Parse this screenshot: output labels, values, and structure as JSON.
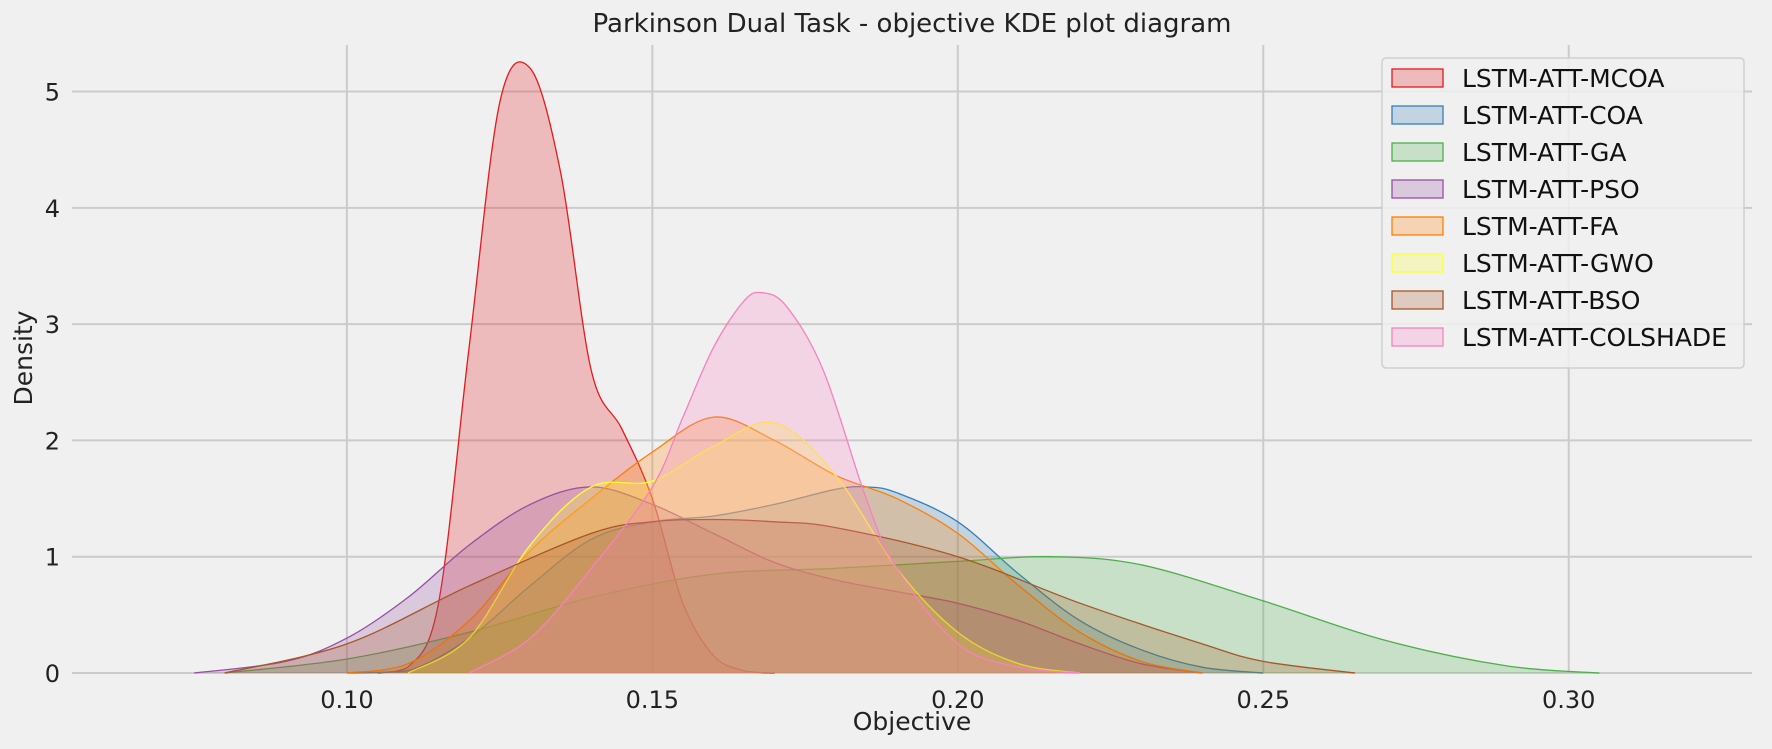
{
  "chart_data": {
    "type": "area",
    "title": "Parkinson Dual Task -  objective KDE plot diagram",
    "xlabel": "Objective",
    "ylabel": "Density",
    "xlim": [
      0.055,
      0.33
    ],
    "ylim": [
      0,
      5.4
    ],
    "xticks": [
      0.1,
      0.15,
      0.2,
      0.25,
      0.3
    ],
    "xtick_labels": [
      "0.10",
      "0.15",
      "0.20",
      "0.25",
      "0.30"
    ],
    "yticks": [
      0,
      1,
      2,
      3,
      4,
      5
    ],
    "ytick_labels": [
      "0",
      "1",
      "2",
      "3",
      "4",
      "5"
    ],
    "grid": true,
    "legend_position": "top-right",
    "series": [
      {
        "name": "LSTM-ATT-MCOA",
        "color": "#e41a1c",
        "x": [
          0.105,
          0.11,
          0.115,
          0.12,
          0.125,
          0.13,
          0.135,
          0.14,
          0.145,
          0.15,
          0.155,
          0.16,
          0.165,
          0.17
        ],
        "y": [
          0.0,
          0.05,
          0.6,
          2.8,
          4.9,
          5.2,
          4.3,
          2.6,
          2.1,
          1.5,
          0.6,
          0.15,
          0.02,
          0.0
        ]
      },
      {
        "name": "LSTM-ATT-COA",
        "color": "#377eb8",
        "x": [
          0.1,
          0.11,
          0.12,
          0.13,
          0.14,
          0.15,
          0.16,
          0.17,
          0.18,
          0.185,
          0.19,
          0.2,
          0.21,
          0.22,
          0.23,
          0.24,
          0.25
        ],
        "y": [
          0.0,
          0.02,
          0.3,
          0.75,
          1.15,
          1.3,
          1.35,
          1.45,
          1.58,
          1.6,
          1.55,
          1.3,
          0.85,
          0.45,
          0.2,
          0.05,
          0.0
        ]
      },
      {
        "name": "LSTM-ATT-GA",
        "color": "#4daf4a",
        "x": [
          0.08,
          0.1,
          0.12,
          0.14,
          0.16,
          0.18,
          0.2,
          0.215,
          0.23,
          0.25,
          0.27,
          0.29,
          0.305
        ],
        "y": [
          0.0,
          0.12,
          0.35,
          0.65,
          0.85,
          0.9,
          0.96,
          1.0,
          0.93,
          0.62,
          0.28,
          0.06,
          0.0
        ]
      },
      {
        "name": "LSTM-ATT-PSO",
        "color": "#984ea3",
        "x": [
          0.075,
          0.09,
          0.1,
          0.11,
          0.12,
          0.13,
          0.14,
          0.15,
          0.16,
          0.17,
          0.18,
          0.19,
          0.2,
          0.21,
          0.22,
          0.23,
          0.24
        ],
        "y": [
          0.0,
          0.1,
          0.3,
          0.65,
          1.1,
          1.45,
          1.6,
          1.45,
          1.2,
          0.95,
          0.8,
          0.7,
          0.6,
          0.45,
          0.25,
          0.08,
          0.0
        ]
      },
      {
        "name": "LSTM-ATT-FA",
        "color": "#ff7f00",
        "x": [
          0.1,
          0.11,
          0.12,
          0.13,
          0.14,
          0.15,
          0.16,
          0.17,
          0.18,
          0.19,
          0.2,
          0.21,
          0.22,
          0.23,
          0.24
        ],
        "y": [
          0.0,
          0.08,
          0.45,
          1.05,
          1.5,
          1.9,
          2.2,
          2.0,
          1.7,
          1.5,
          1.2,
          0.75,
          0.35,
          0.1,
          0.0
        ]
      },
      {
        "name": "LSTM-ATT-GWO",
        "color": "#ffff33",
        "x": [
          0.11,
          0.12,
          0.13,
          0.14,
          0.15,
          0.16,
          0.17,
          0.18,
          0.19,
          0.2,
          0.21,
          0.22
        ],
        "y": [
          0.0,
          0.3,
          1.1,
          1.6,
          1.65,
          1.95,
          2.15,
          1.7,
          0.9,
          0.35,
          0.08,
          0.0
        ]
      },
      {
        "name": "LSTM-ATT-BSO",
        "color": "#a65628",
        "x": [
          0.08,
          0.1,
          0.12,
          0.14,
          0.15,
          0.16,
          0.17,
          0.18,
          0.2,
          0.22,
          0.24,
          0.25,
          0.265
        ],
        "y": [
          0.0,
          0.25,
          0.75,
          1.2,
          1.3,
          1.32,
          1.3,
          1.25,
          1.0,
          0.6,
          0.25,
          0.1,
          0.0
        ]
      },
      {
        "name": "LSTM-ATT-COLSHADE",
        "color": "#f781bf",
        "x": [
          0.12,
          0.13,
          0.14,
          0.15,
          0.155,
          0.16,
          0.165,
          0.168,
          0.172,
          0.178,
          0.185,
          0.19,
          0.2,
          0.21,
          0.22
        ],
        "y": [
          0.0,
          0.3,
          0.9,
          1.6,
          2.2,
          2.8,
          3.2,
          3.27,
          3.15,
          2.6,
          1.5,
          0.9,
          0.25,
          0.05,
          0.0
        ]
      }
    ]
  }
}
